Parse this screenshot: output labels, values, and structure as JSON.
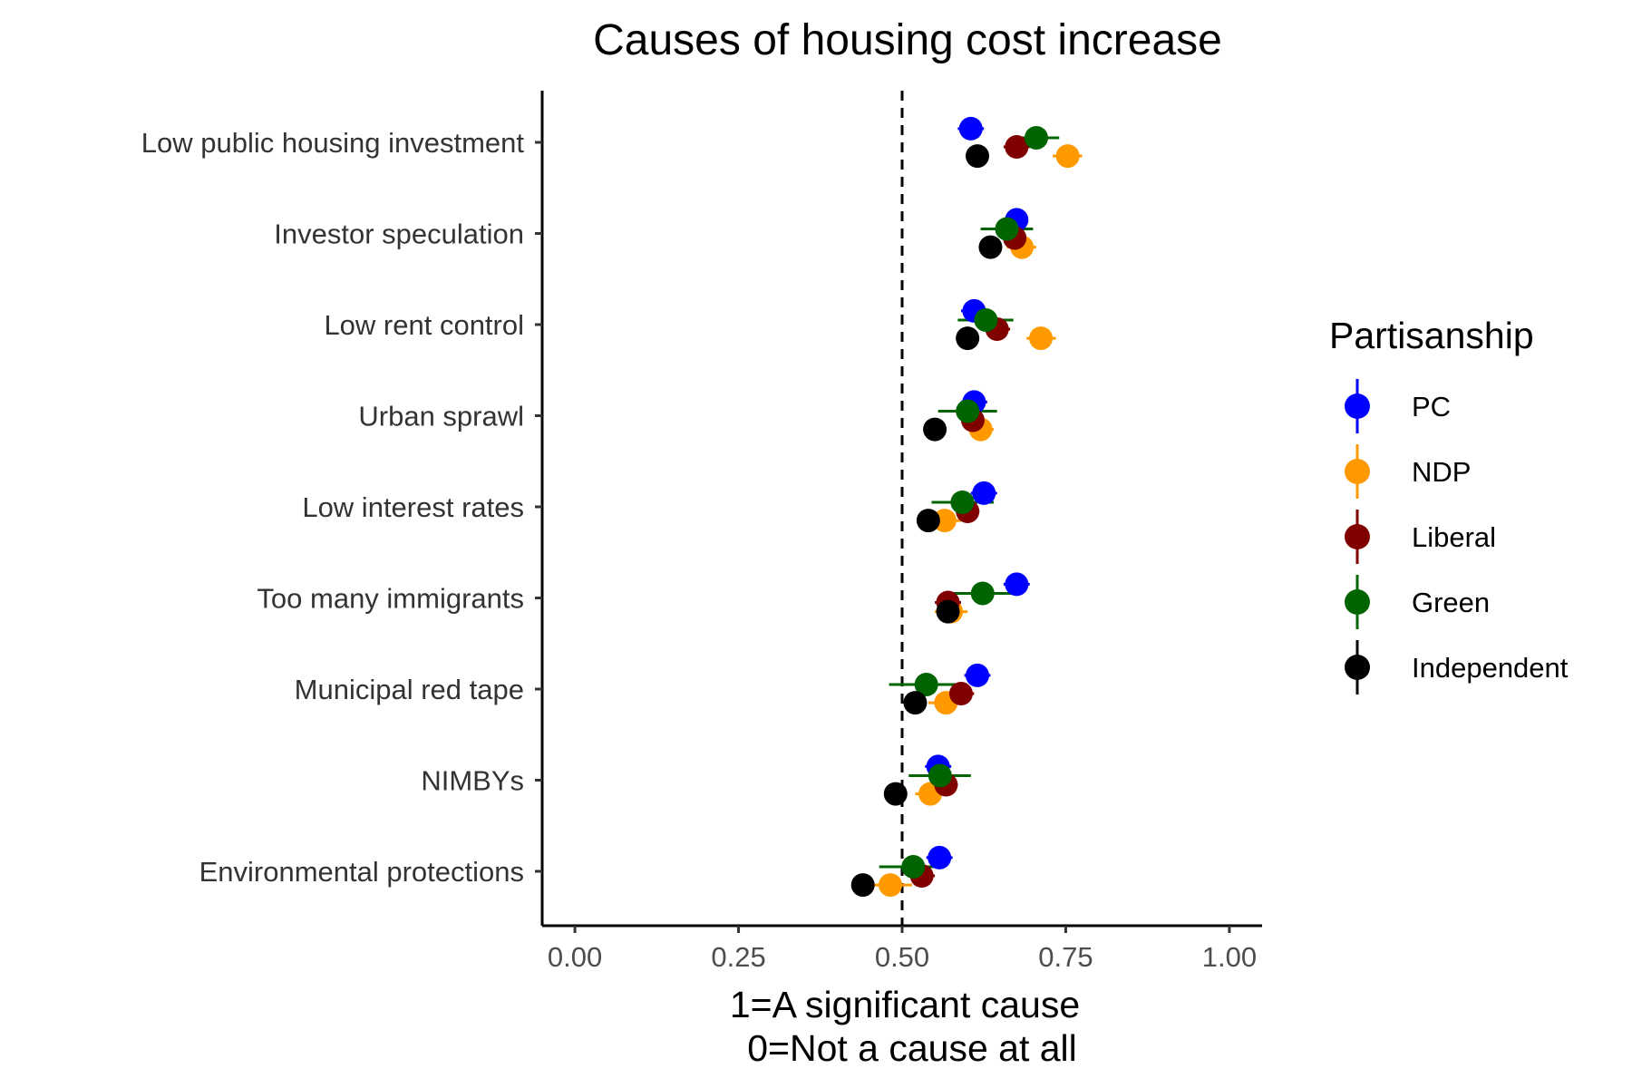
{
  "chart_data": {
    "type": "scatter",
    "title": "Causes of housing cost increase",
    "xlabel_lines": [
      "1=A significant cause",
      "0=Not a cause at all"
    ],
    "ylabel": "",
    "xlim": [
      -0.05,
      1.05
    ],
    "xticks": [
      0,
      0.25,
      0.5,
      0.75,
      1
    ],
    "xtick_labels": [
      "0.00",
      "0.25",
      "0.50",
      "0.75",
      "1.00"
    ],
    "reference_line": 0.5,
    "grid": false,
    "legend": {
      "title": "Partisanship",
      "position": "right"
    },
    "categories": [
      "Low public housing investment",
      "Investor speculation",
      "Low rent control ",
      "Urban sprawl",
      "Low interest rates",
      "Too many immigrants",
      "Municipal red tape",
      "NIMBYs",
      "Environmental protections"
    ],
    "dodge_offsets": [
      -0.15,
      0.15,
      0.05,
      -0.05,
      0.15
    ],
    "series": [
      {
        "name": "PC",
        "color": "#0000FF",
        "values": [
          0.605,
          0.675,
          0.61,
          0.61,
          0.625,
          0.675,
          0.615,
          0.555,
          0.557
        ],
        "ci_low": [
          0.585,
          0.66,
          0.59,
          0.59,
          0.605,
          0.655,
          0.595,
          0.535,
          0.537
        ],
        "ci_high": [
          0.625,
          0.69,
          0.63,
          0.63,
          0.645,
          0.695,
          0.635,
          0.575,
          0.577
        ]
      },
      {
        "name": "NDP",
        "color": "#FF9900",
        "values": [
          0.753,
          0.683,
          0.712,
          0.62,
          0.565,
          0.575,
          0.567,
          0.543,
          0.482
        ],
        "ci_low": [
          0.73,
          0.66,
          0.69,
          0.6,
          0.542,
          0.55,
          0.54,
          0.52,
          0.45
        ],
        "ci_high": [
          0.775,
          0.705,
          0.735,
          0.64,
          0.59,
          0.6,
          0.595,
          0.565,
          0.515
        ]
      },
      {
        "name": "Liberal",
        "color": "#800000",
        "values": [
          0.675,
          0.672,
          0.645,
          0.608,
          0.6,
          0.57,
          0.59,
          0.567,
          0.53
        ],
        "ci_low": [
          0.655,
          0.655,
          0.625,
          0.59,
          0.582,
          0.55,
          0.57,
          0.55,
          0.51
        ],
        "ci_high": [
          0.695,
          0.69,
          0.665,
          0.625,
          0.618,
          0.59,
          0.61,
          0.585,
          0.55
        ]
      },
      {
        "name": "Green",
        "color": "#006400",
        "values": [
          0.705,
          0.66,
          0.628,
          0.6,
          0.592,
          0.623,
          0.537,
          0.558,
          0.517
        ],
        "ci_low": [
          0.67,
          0.62,
          0.585,
          0.555,
          0.545,
          0.575,
          0.48,
          0.51,
          0.465
        ],
        "ci_high": [
          0.74,
          0.7,
          0.67,
          0.645,
          0.64,
          0.67,
          0.59,
          0.605,
          0.565
        ]
      },
      {
        "name": "Independent",
        "color": "#000000",
        "values": [
          0.615,
          0.635,
          0.6,
          0.55,
          0.54,
          0.57,
          0.52,
          0.49,
          0.44
        ],
        "ci_low": [
          0.6,
          0.62,
          0.585,
          0.535,
          0.525,
          0.555,
          0.505,
          0.475,
          0.425
        ],
        "ci_high": [
          0.63,
          0.65,
          0.615,
          0.565,
          0.555,
          0.585,
          0.535,
          0.505,
          0.455
        ]
      }
    ]
  }
}
